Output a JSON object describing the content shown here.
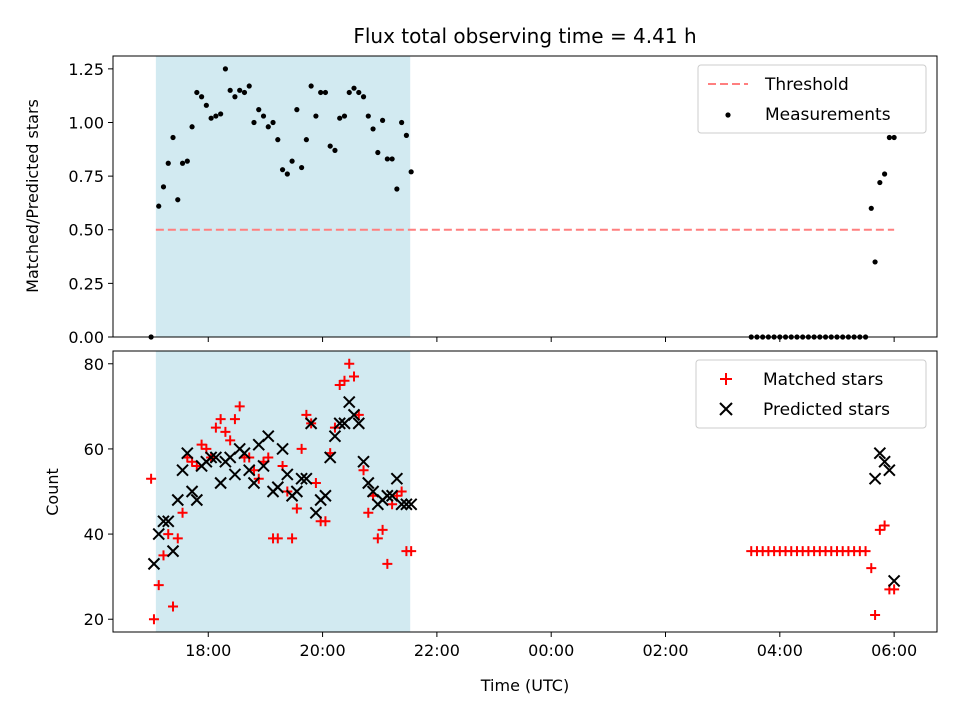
{
  "chart_data": [
    {
      "type": "scatter",
      "title": "Flux total observing time = 4.41 h",
      "xlabel": "",
      "ylabel": "Matched/Predicted stars",
      "xlim": [
        "16:20",
        "06:45"
      ],
      "ylim": [
        0,
        1.31
      ],
      "x_tick_labels": [
        "18:00",
        "20:00",
        "22:00",
        "00:00",
        "02:00",
        "04:00",
        "06:00"
      ],
      "y_ticks": [
        "0.00",
        "0.25",
        "0.50",
        "0.75",
        "1.00",
        "1.25"
      ],
      "shaded_interval": [
        "17:05",
        "21:32"
      ],
      "shade_color": "#add8e6",
      "legend_position": "upper right",
      "series": [
        {
          "name": "Threshold",
          "style": "dashed-line",
          "color": "#ff7f7f",
          "x": [
            "17:05",
            "06:00"
          ],
          "y": [
            0.5,
            0.5
          ]
        },
        {
          "name": "Measurements",
          "style": "dots",
          "color": "#000000",
          "x": [
            "17:00",
            "17:08",
            "17:13",
            "17:18",
            "17:23",
            "17:28",
            "17:33",
            "17:38",
            "17:43",
            "17:48",
            "17:53",
            "17:58",
            "18:03",
            "18:08",
            "18:13",
            "18:18",
            "18:23",
            "18:28",
            "18:33",
            "18:38",
            "18:43",
            "18:48",
            "18:53",
            "18:58",
            "19:03",
            "19:08",
            "19:13",
            "19:18",
            "19:23",
            "19:28",
            "19:33",
            "19:38",
            "19:43",
            "19:48",
            "19:53",
            "19:58",
            "20:03",
            "20:08",
            "20:13",
            "20:18",
            "20:23",
            "20:28",
            "20:33",
            "20:38",
            "20:43",
            "20:48",
            "20:53",
            "20:58",
            "21:03",
            "21:08",
            "21:13",
            "21:18",
            "21:23",
            "21:28",
            "21:33",
            "03:30",
            "03:36",
            "03:42",
            "03:48",
            "03:54",
            "04:00",
            "04:06",
            "04:12",
            "04:18",
            "04:24",
            "04:30",
            "04:36",
            "04:42",
            "04:48",
            "04:54",
            "05:00",
            "05:06",
            "05:12",
            "05:18",
            "05:24",
            "05:30",
            "05:36",
            "05:40",
            "05:45",
            "05:50",
            "05:55",
            "06:00"
          ],
          "y": [
            0.0,
            0.61,
            0.7,
            0.81,
            0.93,
            0.64,
            0.81,
            0.82,
            0.98,
            1.14,
            1.12,
            1.08,
            1.02,
            1.03,
            1.04,
            1.25,
            1.15,
            1.12,
            1.15,
            1.14,
            1.17,
            1.0,
            1.06,
            1.03,
            0.98,
            1.0,
            0.92,
            0.78,
            0.76,
            0.82,
            1.06,
            0.79,
            0.92,
            1.17,
            1.03,
            1.14,
            1.14,
            0.89,
            0.87,
            1.02,
            1.03,
            1.14,
            1.16,
            1.14,
            1.12,
            1.03,
            0.97,
            0.86,
            1.01,
            0.83,
            0.83,
            0.69,
            1.0,
            0.94,
            0.77,
            0,
            0,
            0,
            0,
            0,
            0,
            0,
            0,
            0,
            0,
            0,
            0,
            0,
            0,
            0,
            0,
            0,
            0,
            0,
            0,
            0,
            0.6,
            0.35,
            0.72,
            0.76,
            0.93,
            0.93
          ]
        }
      ]
    },
    {
      "type": "scatter",
      "title": "",
      "xlabel": "Time (UTC)",
      "ylabel": "Count",
      "xlim": [
        "16:20",
        "06:45"
      ],
      "ylim": [
        17,
        83
      ],
      "x_tick_labels": [
        "18:00",
        "20:00",
        "22:00",
        "00:00",
        "02:00",
        "04:00",
        "06:00"
      ],
      "y_ticks": [
        "20",
        "40",
        "60",
        "80"
      ],
      "shaded_interval": [
        "17:05",
        "21:32"
      ],
      "shade_color": "#add8e6",
      "legend_position": "upper right",
      "series": [
        {
          "name": "Matched stars",
          "marker": "plus",
          "color": "#ff0000",
          "x": [
            "17:00",
            "17:03",
            "17:08",
            "17:13",
            "17:18",
            "17:23",
            "17:28",
            "17:33",
            "17:38",
            "17:43",
            "17:48",
            "17:53",
            "17:58",
            "18:03",
            "18:08",
            "18:13",
            "18:18",
            "18:23",
            "18:28",
            "18:33",
            "18:38",
            "18:43",
            "18:48",
            "18:53",
            "18:58",
            "19:03",
            "19:08",
            "19:13",
            "19:18",
            "19:23",
            "19:28",
            "19:33",
            "19:38",
            "19:43",
            "19:48",
            "19:53",
            "19:58",
            "20:03",
            "20:08",
            "20:13",
            "20:18",
            "20:23",
            "20:28",
            "20:33",
            "20:38",
            "20:43",
            "20:48",
            "20:53",
            "20:58",
            "21:03",
            "21:08",
            "21:13",
            "21:18",
            "21:23",
            "21:28",
            "21:33",
            "03:30",
            "03:36",
            "03:42",
            "03:48",
            "03:54",
            "04:00",
            "04:06",
            "04:12",
            "04:18",
            "04:24",
            "04:30",
            "04:36",
            "04:42",
            "04:48",
            "04:54",
            "05:00",
            "05:06",
            "05:12",
            "05:18",
            "05:24",
            "05:30",
            "05:36",
            "05:40",
            "05:45",
            "05:50",
            "05:55",
            "06:00"
          ],
          "y": [
            53,
            20,
            28,
            35,
            40,
            23,
            39,
            45,
            58,
            57,
            56,
            61,
            60,
            58,
            65,
            67,
            64,
            62,
            67,
            70,
            58,
            58,
            55,
            53,
            57,
            58,
            39,
            39,
            56,
            50,
            39,
            46,
            60,
            68,
            66,
            52,
            43,
            43,
            59,
            65,
            75,
            76,
            80,
            77,
            68,
            55,
            45,
            49,
            39,
            41,
            33,
            47,
            49,
            50,
            36,
            36,
            36,
            36,
            36,
            36,
            36,
            36,
            36,
            36,
            36,
            36,
            36,
            36,
            36,
            36,
            36,
            36,
            36,
            36,
            36,
            36,
            36,
            32,
            21,
            41,
            42,
            27,
            27
          ]
        },
        {
          "name": "Predicted stars",
          "marker": "x",
          "color": "#000000",
          "x": [
            "17:03",
            "17:08",
            "17:13",
            "17:18",
            "17:23",
            "17:28",
            "17:33",
            "17:38",
            "17:43",
            "17:48",
            "17:53",
            "17:58",
            "18:03",
            "18:08",
            "18:13",
            "18:18",
            "18:23",
            "18:28",
            "18:33",
            "18:38",
            "18:43",
            "18:48",
            "18:53",
            "18:58",
            "19:03",
            "19:08",
            "19:13",
            "19:18",
            "19:23",
            "19:28",
            "19:33",
            "19:38",
            "19:43",
            "19:48",
            "19:53",
            "19:58",
            "20:03",
            "20:08",
            "20:13",
            "20:18",
            "20:23",
            "20:28",
            "20:33",
            "20:38",
            "20:43",
            "20:48",
            "20:53",
            "20:58",
            "21:03",
            "21:08",
            "21:13",
            "21:18",
            "21:23",
            "21:28",
            "21:33",
            "05:40",
            "05:45",
            "05:50",
            "05:55",
            "06:00"
          ],
          "y": [
            33,
            40,
            43,
            43,
            36,
            48,
            55,
            59,
            50,
            48,
            56,
            57,
            58,
            58,
            52,
            57,
            58,
            54,
            60,
            59,
            55,
            52,
            61,
            56,
            63,
            50,
            51,
            60,
            54,
            49,
            50,
            53,
            53,
            66,
            45,
            48,
            49,
            58,
            63,
            66,
            66,
            71,
            68,
            66,
            57,
            52,
            50,
            47,
            48,
            49,
            49,
            53,
            47,
            47,
            47,
            53,
            59,
            57,
            55,
            29
          ]
        }
      ]
    }
  ]
}
